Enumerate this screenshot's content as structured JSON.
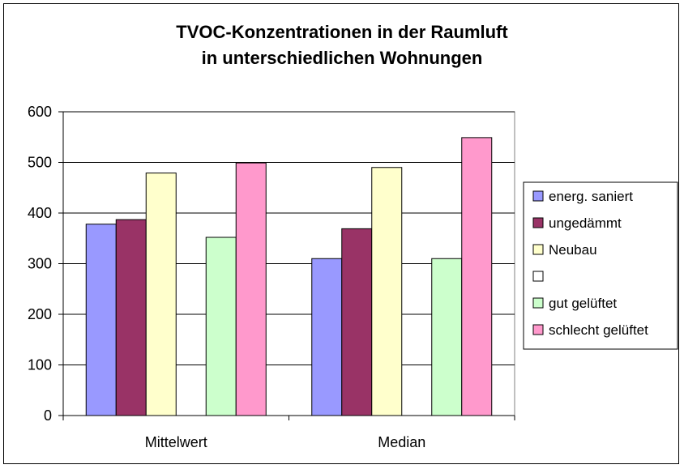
{
  "chart_data": {
    "type": "bar",
    "title": [
      "TVOC-Konzentrationen in der Raumluft",
      "in unterschiedlichen Wohnungen"
    ],
    "xlabel": "",
    "ylabel": "",
    "ylim": [
      0,
      600
    ],
    "yticks": [
      "0",
      "100",
      "200",
      "300",
      "400",
      "500",
      "600"
    ],
    "grid": true,
    "legend_position": "right",
    "categories": [
      "Mittelwert",
      "Median"
    ],
    "series": [
      {
        "name": "energ. saniert",
        "color": "#9999ff",
        "values": [
          378,
          310
        ]
      },
      {
        "name": "ungedämmt",
        "color": "#993366",
        "values": [
          387,
          369
        ]
      },
      {
        "name": "Neubau",
        "color": "#ffffcc",
        "values": [
          479,
          490
        ]
      },
      {
        "name": "",
        "color": "#ffffff",
        "values": [
          null,
          null
        ]
      },
      {
        "name": "gut gelüftet",
        "color": "#ccffcc",
        "values": [
          352,
          310
        ]
      },
      {
        "name": "schlecht gelüftet",
        "color": "#ff99cc",
        "values": [
          499,
          549
        ]
      }
    ]
  }
}
